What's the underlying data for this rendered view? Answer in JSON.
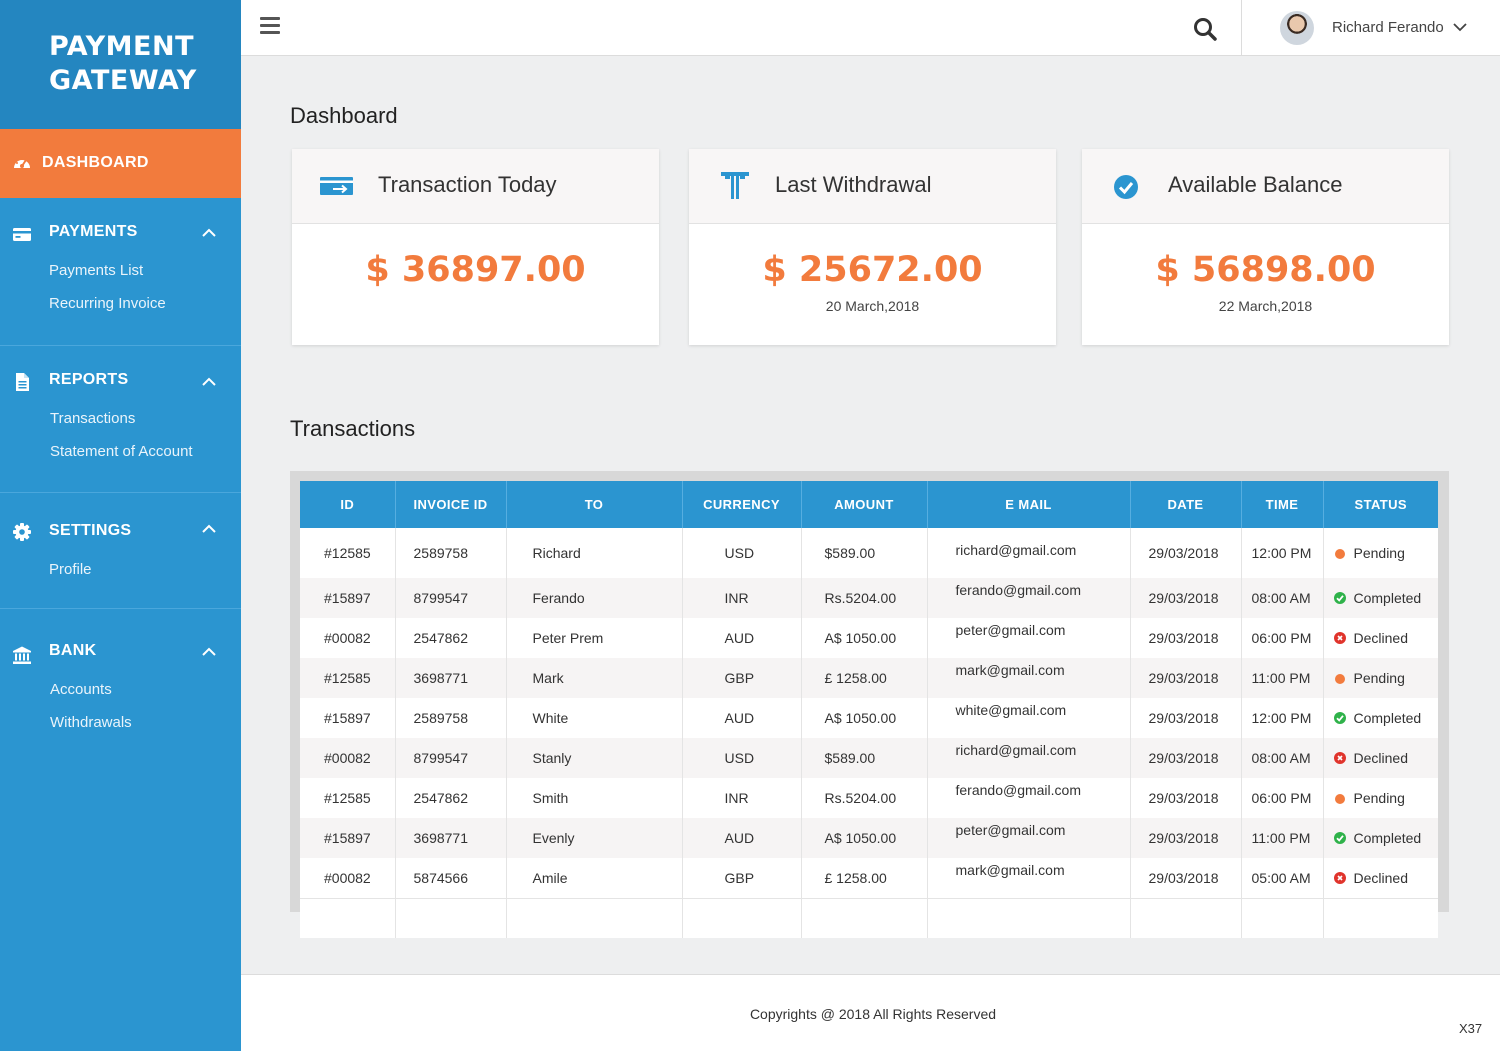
{
  "brand": {
    "line1": "PAYMENT",
    "line2": "GATEWAY"
  },
  "nav": {
    "dashboard": "DASHBOARD",
    "payments": {
      "label": "PAYMENTS",
      "items": [
        "Payments List",
        "Recurring Invoice"
      ]
    },
    "reports": {
      "label": "REPORTS",
      "items": [
        "Transactions",
        "Statement of Account"
      ]
    },
    "settings": {
      "label": "SETTINGS",
      "items": [
        "Profile"
      ]
    },
    "bank": {
      "label": "BANK",
      "items": [
        "Accounts",
        "Withdrawals"
      ]
    }
  },
  "topbar": {
    "user_name": "Richard Ferando"
  },
  "dashboard": {
    "title": "Dashboard",
    "cards": [
      {
        "title": "Transaction Today",
        "value": "$ 36897.00",
        "sub": ""
      },
      {
        "title": "Last Withdrawal",
        "value": "$ 25672.00",
        "sub": "20 March,2018"
      },
      {
        "title": "Available Balance",
        "value": "$ 56898.00",
        "sub": "22 March,2018"
      }
    ]
  },
  "transactions": {
    "title": "Transactions",
    "columns": [
      "ID",
      "INVOICE ID",
      "TO",
      "CURRENCY",
      "AMOUNT",
      "E MAIL",
      "DATE",
      "TIME",
      "STATUS"
    ],
    "rows": [
      {
        "id": "#12585",
        "invoice": "2589758",
        "to": "Richard",
        "currency": "USD",
        "amount": "$589.00",
        "email": "richard@gmail.com",
        "date": "29/03/2018",
        "time": "12:00 PM",
        "status": "Pending"
      },
      {
        "id": "#15897",
        "invoice": "8799547",
        "to": "Ferando",
        "currency": "INR",
        "amount": "Rs.5204.00",
        "email": "ferando@gmail.com",
        "date": "29/03/2018",
        "time": "08:00 AM",
        "status": "Completed"
      },
      {
        "id": "#00082",
        "invoice": "2547862",
        "to": "Peter Prem",
        "currency": "AUD",
        "amount": "A$ 1050.00",
        "email": "peter@gmail.com",
        "date": "29/03/2018",
        "time": "06:00 PM",
        "status": "Declined"
      },
      {
        "id": "#12585",
        "invoice": "3698771",
        "to": "Mark",
        "currency": "GBP",
        "amount": "£ 1258.00",
        "email": "mark@gmail.com",
        "date": "29/03/2018",
        "time": "11:00 PM",
        "status": "Pending"
      },
      {
        "id": "#15897",
        "invoice": "2589758",
        "to": "White",
        "currency": "AUD",
        "amount": "A$ 1050.00",
        "email": "white@gmail.com",
        "date": "29/03/2018",
        "time": "12:00 PM",
        "status": "Completed"
      },
      {
        "id": "#00082",
        "invoice": "8799547",
        "to": "Stanly",
        "currency": "USD",
        "amount": "$589.00",
        "email": "richard@gmail.com",
        "date": "29/03/2018",
        "time": "08:00 AM",
        "status": "Declined"
      },
      {
        "id": "#12585",
        "invoice": "2547862",
        "to": "Smith",
        "currency": "INR",
        "amount": "Rs.5204.00",
        "email": "ferando@gmail.com",
        "date": "29/03/2018",
        "time": "06:00 PM",
        "status": "Pending"
      },
      {
        "id": "#15897",
        "invoice": "3698771",
        "to": "Evenly",
        "currency": "AUD",
        "amount": "A$ 1050.00",
        "email": "peter@gmail.com",
        "date": "29/03/2018",
        "time": "11:00 PM",
        "status": "Completed"
      },
      {
        "id": "#00082",
        "invoice": "5874566",
        "to": "Amile",
        "currency": "GBP",
        "amount": "£ 1258.00",
        "email": "mark@gmail.com",
        "date": "29/03/2018",
        "time": "05:00 AM",
        "status": "Declined"
      }
    ]
  },
  "footer": {
    "copyright": "Copyrights @ 2018 All Rights Reserved",
    "code": "X37"
  },
  "colors": {
    "sidebar": "#2b95d0",
    "brand_bg": "#2486c0",
    "accent": "#f27b3d",
    "completed": "#2fb24a",
    "declined": "#e0342c"
  },
  "icons": [
    "dashboard-icon",
    "credit-card-icon",
    "document-icon",
    "gear-icon",
    "bank-icon",
    "chevron-up-icon",
    "menu-icon",
    "search-icon",
    "chevron-down-icon",
    "transfer-card-icon",
    "withdrawal-icon",
    "check-circle-icon"
  ]
}
